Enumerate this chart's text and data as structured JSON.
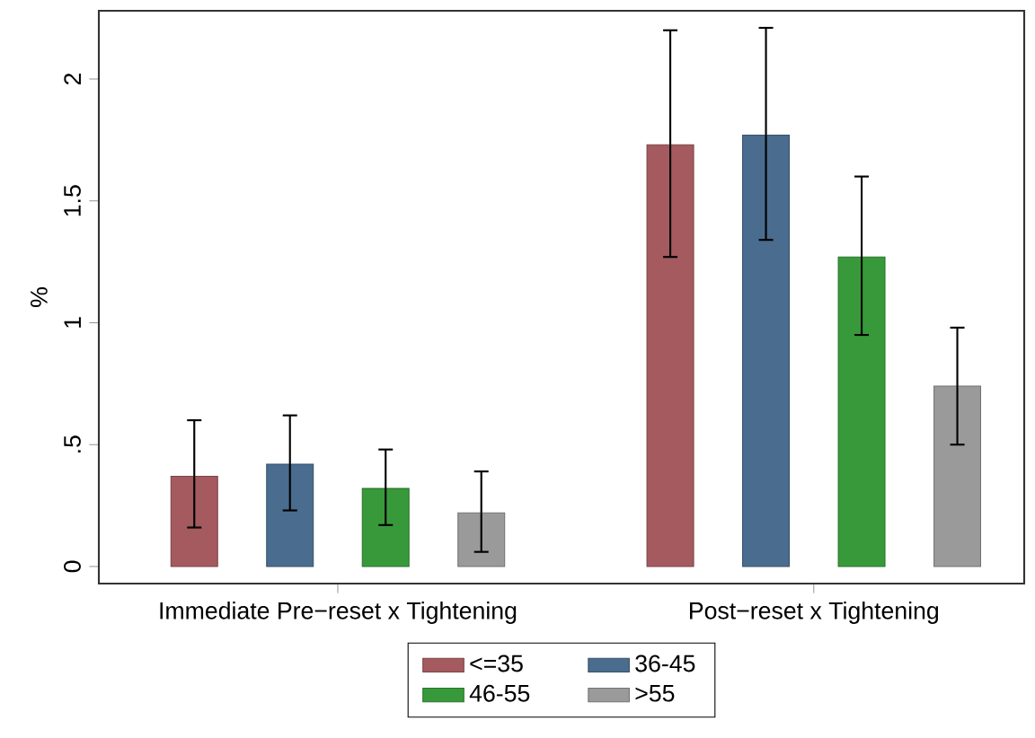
{
  "chart_data": {
    "type": "bar",
    "ylabel": "%",
    "categories": [
      "Immediate Pre−reset x Tightening",
      "Post−reset x Tightening"
    ],
    "series": [
      {
        "name": "<=35",
        "color": "#a45a5e",
        "values": [
          0.37,
          1.73
        ],
        "errors": [
          [
            0.16,
            0.6
          ],
          [
            1.27,
            2.2
          ]
        ]
      },
      {
        "name": "36-45",
        "color": "#4a6c8e",
        "values": [
          0.42,
          1.77
        ],
        "errors": [
          [
            0.23,
            0.62
          ],
          [
            1.34,
            2.21
          ]
        ]
      },
      {
        "name": "46-55",
        "color": "#38993a",
        "values": [
          0.32,
          1.27
        ],
        "errors": [
          [
            0.17,
            0.48
          ],
          [
            0.95,
            1.6
          ]
        ]
      },
      {
        "name": ">55",
        "color": "#9a9a9a",
        "values": [
          0.22,
          0.74
        ],
        "errors": [
          [
            0.06,
            0.39
          ],
          [
            0.5,
            0.98
          ]
        ]
      }
    ],
    "ylim": [
      -0.07,
      2.28
    ],
    "yticks": [
      0,
      {
        "value": 0.5,
        "label": ".5"
      },
      1,
      1.5,
      2
    ],
    "legend": "bottom"
  }
}
